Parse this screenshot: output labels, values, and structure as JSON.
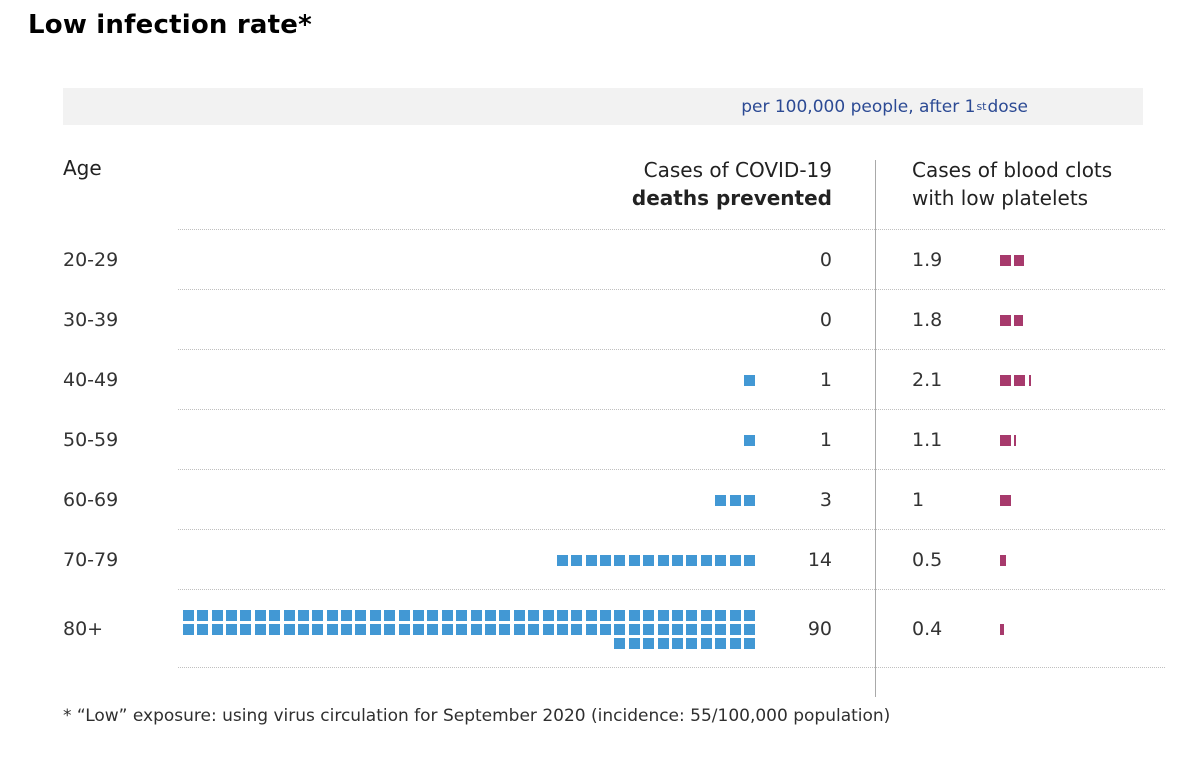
{
  "title": "Low infection rate*",
  "subtitle_bar": {
    "text_before_sup": "per 100,000 people, after 1",
    "sup": "st",
    "text_after_sup": " dose"
  },
  "table_headers": {
    "age": "Age",
    "deaths_line1": "Cases of COVID-19",
    "deaths_line2": "deaths prevented",
    "clots_line1": "Cases of blood clots",
    "clots_line2": "with low platelets"
  },
  "footnote": "* “Low” exposure: using virus circulation for September 2020 (incidence: 55/100,000 population)",
  "colors": {
    "deaths_square": "#4298d4",
    "clots_square": "#a73a6c",
    "subtitle_text": "#2c4a94",
    "subtitle_bg": "#f2f2f2",
    "divider": "#a9a9a9",
    "dotted_line": "#c0c0c0"
  },
  "chart_data": {
    "type": "table",
    "subtype": "pictogram",
    "title": "Low infection rate*",
    "subtitle": "per 100,000 people, after 1st dose",
    "unit": "per 100,000 people",
    "square_value": 1,
    "squares_per_row": 40,
    "categories": [
      "20-29",
      "30-39",
      "40-49",
      "50-59",
      "60-69",
      "70-79",
      "80+"
    ],
    "series": [
      {
        "name": "Cases of COVID-19 deaths prevented",
        "values": [
          0,
          0,
          1,
          1,
          3,
          14,
          90
        ],
        "color": "#4298d4",
        "alignment": "right"
      },
      {
        "name": "Cases of blood clots with low platelets",
        "values": [
          1.9,
          1.8,
          2.1,
          1.1,
          1,
          0.5,
          0.4
        ],
        "color": "#a73a6c",
        "alignment": "left"
      }
    ],
    "footnote": "* “Low” exposure: using virus circulation for September 2020 (incidence: 55/100,000 population)"
  }
}
